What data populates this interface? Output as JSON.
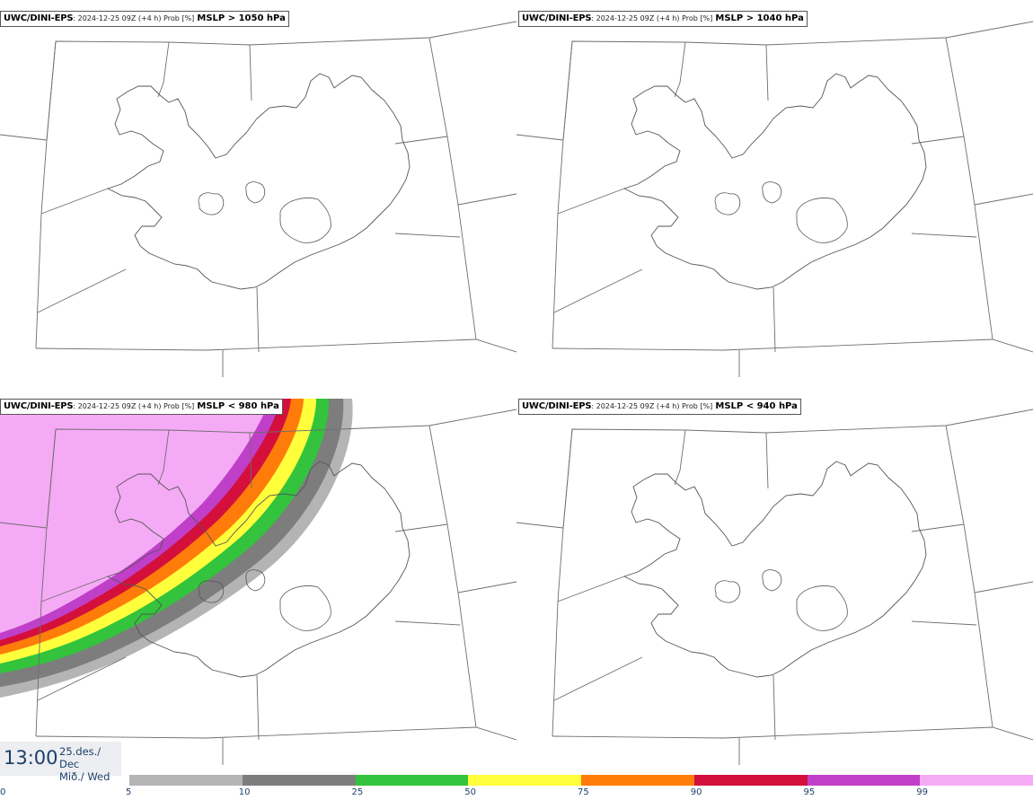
{
  "panels": [
    {
      "model": "UWC/DINI-EPS",
      "run": ": 2024-12-25 09Z (+4 h) Prob [%]",
      "param": "MSLP > 1050 hPa"
    },
    {
      "model": "UWC/DINI-EPS",
      "run": ": 2024-12-25 09Z (+4 h) Prob [%]",
      "param": "MSLP > 1040 hPa"
    },
    {
      "model": "UWC/DINI-EPS",
      "run": ": 2024-12-25 09Z (+4 h) Prob [%]",
      "param": "MSLP < 980 hPa"
    },
    {
      "model": "UWC/DINI-EPS",
      "run": ": 2024-12-25 09Z (+4 h) Prob [%]",
      "param": "MSLP < 940 hPa"
    }
  ],
  "valid_time": {
    "time": "13:00",
    "date_line1": "25.des./ Dec",
    "date_line2": "Mið./ Wed"
  },
  "legend": {
    "ticks": [
      "0",
      "5",
      "10",
      "25",
      "50",
      "75",
      "90",
      "95",
      "99"
    ],
    "colors": [
      "#b4b4b4",
      "#7d7d7d",
      "#33c33c",
      "#ffff3c",
      "#ff7c0a",
      "#d40f3c",
      "#c03fc8",
      "#f5aaf5"
    ]
  }
}
